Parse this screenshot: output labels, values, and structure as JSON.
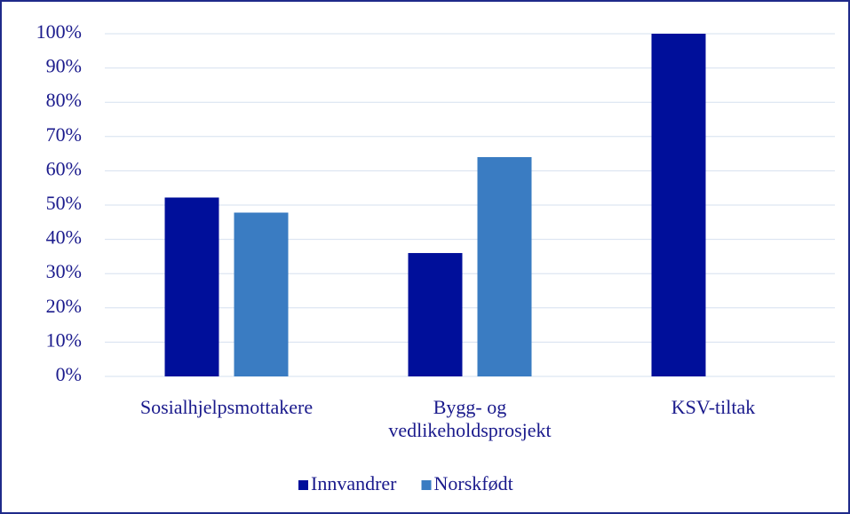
{
  "chart_data": {
    "type": "bar",
    "categories": [
      "Sosialhjelpsmottakere",
      "Bygg- og vedlikeholdsprosjekt",
      "KSV-tiltak"
    ],
    "series": [
      {
        "name": "Innvandrer",
        "color": "#000f9a",
        "values": [
          52.2,
          36,
          100
        ]
      },
      {
        "name": "Norskfødt",
        "color": "#3a7cc2",
        "values": [
          47.8,
          64,
          0
        ]
      }
    ],
    "ylim": [
      0,
      100
    ],
    "yticks": [
      {
        "value": 0,
        "label": "0%"
      },
      {
        "value": 10,
        "label": "10%"
      },
      {
        "value": 20,
        "label": "20%"
      },
      {
        "value": 30,
        "label": "30%"
      },
      {
        "value": 40,
        "label": "40%"
      },
      {
        "value": 50,
        "label": "50%"
      },
      {
        "value": 60,
        "label": "60%"
      },
      {
        "value": 70,
        "label": "70%"
      },
      {
        "value": 80,
        "label": "80%"
      },
      {
        "value": 90,
        "label": "90%"
      },
      {
        "value": 100,
        "label": "100%"
      }
    ],
    "grid": true,
    "legend": "bottom"
  }
}
